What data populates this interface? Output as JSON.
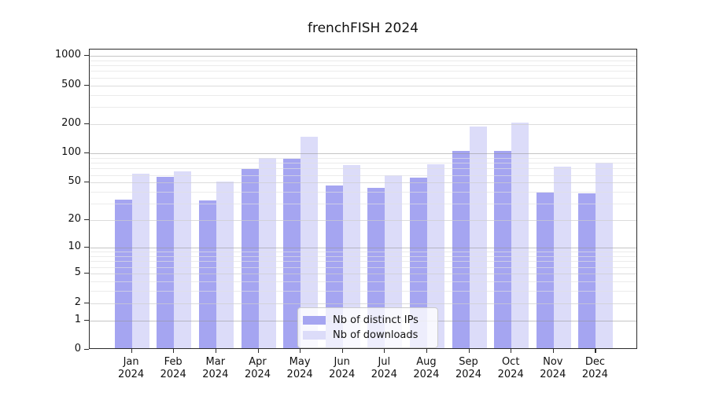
{
  "title": "frenchFISH 2024",
  "chart_data": {
    "type": "bar",
    "title": "frenchFISH 2024",
    "categories": [
      "Jan",
      "Feb",
      "Mar",
      "Apr",
      "May",
      "Jun",
      "Jul",
      "Aug",
      "Sep",
      "Oct",
      "Nov",
      "Dec"
    ],
    "x_tick_second_line": "2024",
    "series": [
      {
        "name": "Nb of distinct IPs",
        "color": "#a5a5f1",
        "values": [
          32,
          55,
          31,
          66,
          85,
          45,
          42,
          54,
          103,
          103,
          38,
          37
        ]
      },
      {
        "name": "Nb of downloads",
        "color": "#dcdcf9",
        "values": [
          60,
          63,
          49,
          87,
          144,
          73,
          57,
          74,
          183,
          199,
          70,
          78
        ]
      }
    ],
    "y_ticks": [
      0,
      1,
      2,
      5,
      10,
      20,
      50,
      100,
      200,
      500,
      1000
    ],
    "y_minor_ticks": [
      3,
      4,
      6,
      7,
      8,
      9,
      30,
      40,
      60,
      70,
      80,
      90,
      300,
      400,
      600,
      700,
      800,
      900
    ],
    "y_scale": "log10(1+v)",
    "ylim": [
      0,
      1160
    ],
    "xlabel": "",
    "ylabel": "",
    "grid": true,
    "grid_above_bars": true,
    "legend_position": "inside-bottom-center"
  },
  "colors": {
    "background": "#ffffff",
    "axis": "#2b2b2b",
    "bar_ips": "#a5a5f1",
    "bar_downloads": "#dcdcf9",
    "grid_strong": "#969696",
    "grid_major": "#cdcdcd",
    "grid_minor": "#e1e1e1"
  }
}
